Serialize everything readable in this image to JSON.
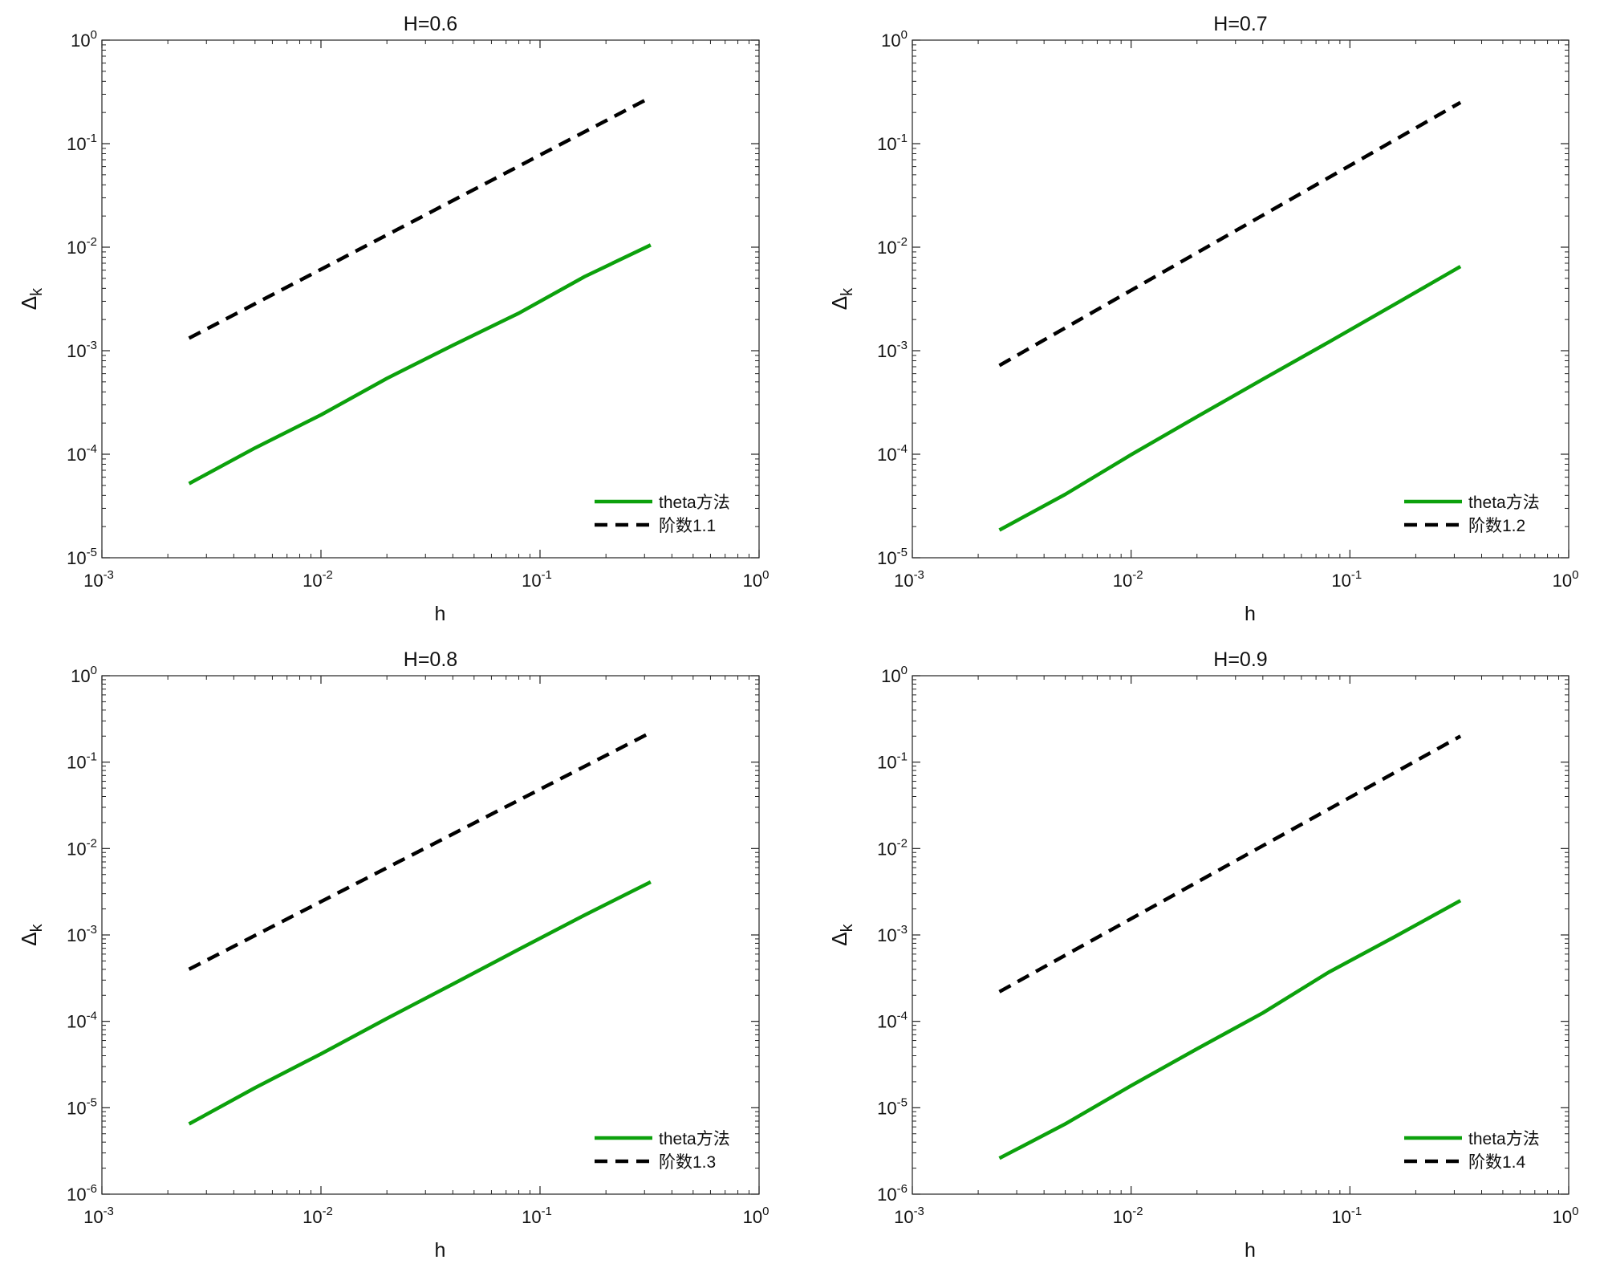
{
  "chart_data": [
    {
      "type": "line",
      "title": "H=0.6",
      "xlabel": "h",
      "ylabel": "Δ",
      "ylabel_subscript": "k",
      "xscale": "log",
      "yscale": "log",
      "xlim": [
        0.001,
        1
      ],
      "ylim": [
        1e-05,
        1
      ],
      "xticks": [
        {
          "base": "10",
          "exp": "-3"
        },
        {
          "base": "10",
          "exp": "-2"
        },
        {
          "base": "10",
          "exp": "-1"
        },
        {
          "base": "10",
          "exp": "0"
        }
      ],
      "yticks": [
        {
          "base": "10",
          "exp": "-5"
        },
        {
          "base": "10",
          "exp": "-4"
        },
        {
          "base": "10",
          "exp": "-3"
        },
        {
          "base": "10",
          "exp": "-2"
        },
        {
          "base": "10",
          "exp": "-1"
        },
        {
          "base": "10",
          "exp": "0"
        }
      ],
      "grid": false,
      "legend_position": "bottom-right",
      "series": [
        {
          "name": "theta方法",
          "color": "#0ca10c",
          "style": "solid",
          "x": [
            0.0025,
            0.005,
            0.01,
            0.02,
            0.04,
            0.08,
            0.16,
            0.32
          ],
          "y": [
            5.2e-05,
            0.000115,
            0.00024,
            0.00054,
            0.00113,
            0.0023,
            0.0052,
            0.0105
          ]
        },
        {
          "name": "阶数1.1",
          "color": "#000000",
          "style": "dashed",
          "x": [
            0.0025,
            0.32
          ],
          "y": [
            0.00132,
            0.28
          ]
        }
      ]
    },
    {
      "type": "line",
      "title": "H=0.7",
      "xlabel": "h",
      "ylabel": "Δ",
      "ylabel_subscript": "k",
      "xscale": "log",
      "yscale": "log",
      "xlim": [
        0.001,
        1
      ],
      "ylim": [
        1e-05,
        1
      ],
      "xticks": [
        {
          "base": "10",
          "exp": "-3"
        },
        {
          "base": "10",
          "exp": "-2"
        },
        {
          "base": "10",
          "exp": "-1"
        },
        {
          "base": "10",
          "exp": "0"
        }
      ],
      "yticks": [
        {
          "base": "10",
          "exp": "-5"
        },
        {
          "base": "10",
          "exp": "-4"
        },
        {
          "base": "10",
          "exp": "-3"
        },
        {
          "base": "10",
          "exp": "-2"
        },
        {
          "base": "10",
          "exp": "-1"
        },
        {
          "base": "10",
          "exp": "0"
        }
      ],
      "grid": false,
      "legend_position": "bottom-right",
      "series": [
        {
          "name": "theta方法",
          "color": "#0ca10c",
          "style": "solid",
          "x": [
            0.0025,
            0.005,
            0.01,
            0.02,
            0.04,
            0.08,
            0.16,
            0.32
          ],
          "y": [
            1.85e-05,
            4.1e-05,
            9.9e-05,
            0.00023,
            0.00053,
            0.00121,
            0.0028,
            0.0065
          ]
        },
        {
          "name": "阶数1.2",
          "color": "#000000",
          "style": "dashed",
          "x": [
            0.0025,
            0.32
          ],
          "y": [
            0.00072,
            0.25
          ]
        }
      ]
    },
    {
      "type": "line",
      "title": "H=0.8",
      "xlabel": "h",
      "ylabel": "Δ",
      "ylabel_subscript": "k",
      "xscale": "log",
      "yscale": "log",
      "xlim": [
        0.001,
        1
      ],
      "ylim": [
        1e-06,
        1
      ],
      "xticks": [
        {
          "base": "10",
          "exp": "-3"
        },
        {
          "base": "10",
          "exp": "-2"
        },
        {
          "base": "10",
          "exp": "-1"
        },
        {
          "base": "10",
          "exp": "0"
        }
      ],
      "yticks": [
        {
          "base": "10",
          "exp": "-6"
        },
        {
          "base": "10",
          "exp": "-5"
        },
        {
          "base": "10",
          "exp": "-4"
        },
        {
          "base": "10",
          "exp": "-3"
        },
        {
          "base": "10",
          "exp": "-2"
        },
        {
          "base": "10",
          "exp": "-1"
        },
        {
          "base": "10",
          "exp": "0"
        }
      ],
      "grid": false,
      "legend_position": "bottom-right",
      "series": [
        {
          "name": "theta方法",
          "color": "#0ca10c",
          "style": "solid",
          "x": [
            0.0025,
            0.005,
            0.01,
            0.02,
            0.04,
            0.08,
            0.16,
            0.32
          ],
          "y": [
            6.5e-06,
            1.7e-05,
            4.2e-05,
            0.000108,
            0.00027,
            0.00068,
            0.0017,
            0.0041
          ]
        },
        {
          "name": "阶数1.3",
          "color": "#000000",
          "style": "dashed",
          "x": [
            0.0025,
            0.32
          ],
          "y": [
            0.0004,
            0.22
          ]
        }
      ]
    },
    {
      "type": "line",
      "title": "H=0.9",
      "xlabel": "h",
      "ylabel": "Δ",
      "ylabel_subscript": "k",
      "xscale": "log",
      "yscale": "log",
      "xlim": [
        0.001,
        1
      ],
      "ylim": [
        1e-06,
        1
      ],
      "xticks": [
        {
          "base": "10",
          "exp": "-3"
        },
        {
          "base": "10",
          "exp": "-2"
        },
        {
          "base": "10",
          "exp": "-1"
        },
        {
          "base": "10",
          "exp": "0"
        }
      ],
      "yticks": [
        {
          "base": "10",
          "exp": "-6"
        },
        {
          "base": "10",
          "exp": "-5"
        },
        {
          "base": "10",
          "exp": "-4"
        },
        {
          "base": "10",
          "exp": "-3"
        },
        {
          "base": "10",
          "exp": "-2"
        },
        {
          "base": "10",
          "exp": "-1"
        },
        {
          "base": "10",
          "exp": "0"
        }
      ],
      "grid": false,
      "legend_position": "bottom-right",
      "series": [
        {
          "name": "theta方法",
          "color": "#0ca10c",
          "style": "solid",
          "x": [
            0.0025,
            0.005,
            0.01,
            0.02,
            0.04,
            0.08,
            0.16,
            0.32
          ],
          "y": [
            2.6e-06,
            6.5e-06,
            1.8e-05,
            4.8e-05,
            0.000125,
            0.00037,
            0.00095,
            0.0025
          ]
        },
        {
          "name": "阶数1.4",
          "color": "#000000",
          "style": "dashed",
          "x": [
            0.0025,
            0.32
          ],
          "y": [
            0.00022,
            0.2
          ]
        }
      ]
    }
  ]
}
